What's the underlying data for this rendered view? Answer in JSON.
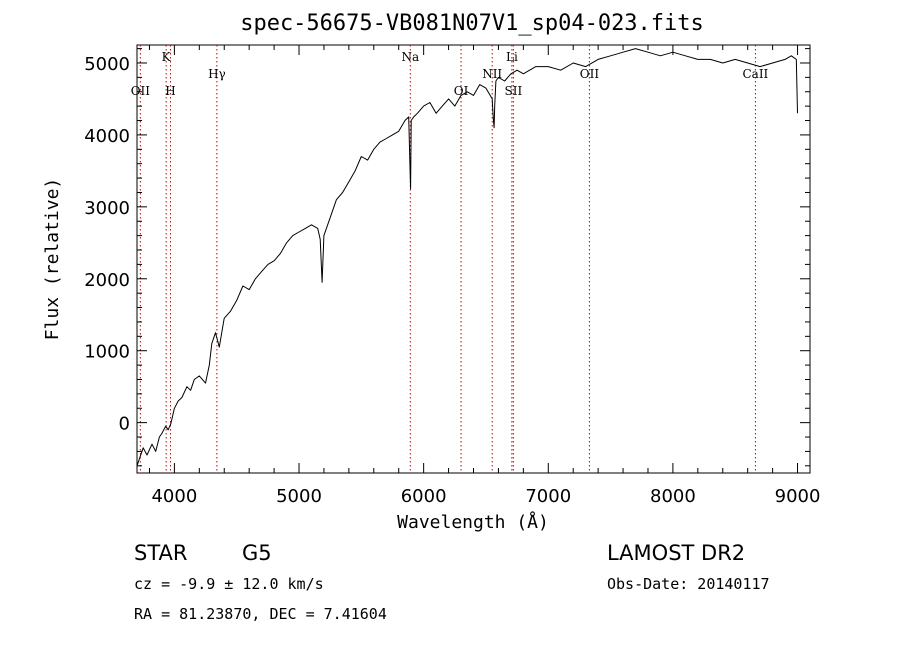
{
  "chart_data": {
    "type": "line",
    "title": "spec-56675-VB081N07V1_sp04-023.fits",
    "xlabel": "Wavelength (Å)",
    "ylabel": "Flux (relative)",
    "xlim": [
      3700,
      9100
    ],
    "ylim": [
      -700,
      5250
    ],
    "x_ticks": [
      4000,
      5000,
      6000,
      7000,
      8000,
      9000
    ],
    "y_ticks": [
      0,
      1000,
      2000,
      3000,
      4000,
      5000
    ],
    "grid": false,
    "series": [
      {
        "x": [
          3700,
          3720,
          3750,
          3780,
          3820,
          3850,
          3880,
          3900,
          3930,
          3950,
          3970,
          3980,
          4000,
          4030,
          4060,
          4100,
          4130,
          4160,
          4200,
          4250,
          4280,
          4300,
          4330,
          4360,
          4400,
          4450,
          4500,
          4550,
          4600,
          4650,
          4700,
          4750,
          4800,
          4850,
          4900,
          4950,
          5000,
          5050,
          5100,
          5150,
          5170,
          5185,
          5200,
          5250,
          5300,
          5350,
          5400,
          5450,
          5500,
          5550,
          5600,
          5650,
          5700,
          5750,
          5800,
          5850,
          5880,
          5890,
          5895,
          5900,
          5920,
          5950,
          6000,
          6050,
          6100,
          6150,
          6200,
          6250,
          6300,
          6350,
          6400,
          6450,
          6500,
          6550,
          6560,
          6565,
          6570,
          6580,
          6600,
          6650,
          6700,
          6750,
          6800,
          6850,
          6900,
          7000,
          7100,
          7200,
          7300,
          7400,
          7500,
          7600,
          7700,
          7800,
          7900,
          8000,
          8100,
          8200,
          8300,
          8400,
          8500,
          8600,
          8700,
          8800,
          8900,
          8950,
          8990,
          9000
        ],
        "y": [
          -600,
          -500,
          -350,
          -450,
          -300,
          -400,
          -200,
          -150,
          -50,
          -100,
          -20,
          50,
          200,
          300,
          350,
          500,
          450,
          600,
          650,
          550,
          800,
          1100,
          1250,
          1050,
          1450,
          1550,
          1700,
          1900,
          1850,
          2000,
          2100,
          2200,
          2250,
          2350,
          2500,
          2600,
          2650,
          2700,
          2750,
          2700,
          2550,
          1950,
          2600,
          2850,
          3100,
          3200,
          3350,
          3500,
          3700,
          3650,
          3800,
          3900,
          3950,
          4000,
          4050,
          4200,
          4250,
          3600,
          3250,
          4200,
          4250,
          4300,
          4400,
          4450,
          4300,
          4400,
          4500,
          4400,
          4550,
          4600,
          4550,
          4700,
          4650,
          4500,
          4200,
          4100,
          4400,
          4750,
          4800,
          4750,
          4850,
          4900,
          4850,
          4900,
          4950,
          4950,
          4900,
          5000,
          4950,
          5050,
          5100,
          5150,
          5200,
          5150,
          5100,
          5150,
          5100,
          5050,
          5050,
          5000,
          5050,
          5000,
          4950,
          5000,
          5050,
          5100,
          5050,
          4300
        ]
      }
    ],
    "lines": [
      {
        "label": "OII",
        "x": 3727,
        "row": "low"
      },
      {
        "label": "K",
        "x": 3934,
        "row": "high"
      },
      {
        "label": "H",
        "x": 3969,
        "row": "low"
      },
      {
        "label": "Hγ",
        "x": 4341,
        "row": "mid"
      },
      {
        "label": "Na",
        "x": 5893,
        "row": "high"
      },
      {
        "label": "OI",
        "x": 6300,
        "row": "low"
      },
      {
        "label": "NII",
        "x": 6550,
        "row": "mid"
      },
      {
        "label": "Li",
        "x": 6708,
        "row": "high"
      },
      {
        "label": "SII",
        "x": 6720,
        "row": "low"
      },
      {
        "label": "OII",
        "x": 7330,
        "row": "mid"
      },
      {
        "label": "CaII",
        "x": 8662,
        "row": "mid"
      }
    ],
    "line_color": "#cc0000"
  },
  "info": {
    "object": "STAR",
    "subclass": "G5",
    "survey": "LAMOST DR2",
    "cz": "cz = -9.9 ± 12.0 km/s",
    "obs_date": "Obs-Date: 20140117",
    "coords": "RA =  81.23870, DEC =   7.41604"
  }
}
